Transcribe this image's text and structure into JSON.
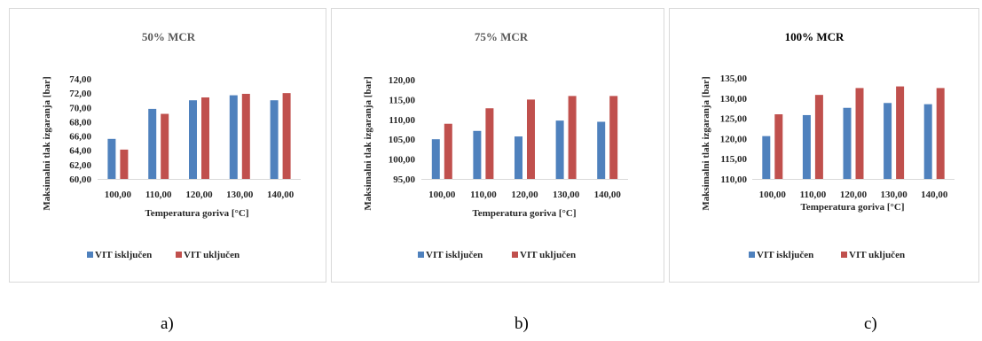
{
  "chart_data": [
    {
      "type": "bar",
      "title": "50% MCR",
      "xlabel": "Temperatura goriva [°C]",
      "ylabel": "Maksimalni tlak izgaranja [bar]",
      "categories": [
        "100,00",
        "110,00",
        "120,00",
        "130,00",
        "140,00"
      ],
      "series": [
        {
          "name": "VIT isključen",
          "values": [
            65.6,
            69.8,
            71.0,
            71.7,
            71.0
          ]
        },
        {
          "name": "VIT uključen",
          "values": [
            64.1,
            69.1,
            71.4,
            71.9,
            72.0
          ]
        }
      ],
      "ylim": [
        60,
        74
      ],
      "yticks": [
        "60,00",
        "62,00",
        "64,00",
        "66,00",
        "68,00",
        "70,00",
        "72,00",
        "74,00"
      ],
      "colors": [
        "#4f81bd",
        "#c0504d"
      ],
      "legend": "bottom",
      "grid": false
    },
    {
      "type": "bar",
      "title": "75% MCR",
      "xlabel": "Temperatura goriva [°C]",
      "ylabel": "Maksimalni tlak izgaranja [bar]",
      "categories": [
        "100,00",
        "110,00",
        "120,00",
        "130,00",
        "140,00"
      ],
      "series": [
        {
          "name": "VIT isključen",
          "values": [
            105.0,
            107.1,
            105.7,
            109.7,
            109.4
          ]
        },
        {
          "name": "VIT uključen",
          "values": [
            108.9,
            112.8,
            115.0,
            115.9,
            115.9
          ]
        }
      ],
      "ylim": [
        95,
        120
      ],
      "yticks": [
        "95,00",
        "100,00",
        "105,00",
        "110,00",
        "115,00",
        "120,00"
      ],
      "colors": [
        "#4f81bd",
        "#c0504d"
      ],
      "legend": "bottom",
      "grid": false
    },
    {
      "type": "bar",
      "title": "100% MCR",
      "xlabel": "Temperatura goriva [°C]",
      "ylabel": "Maksimalni tlak izgaranja [bar]",
      "categories": [
        "100,00",
        "110,00",
        "120,00",
        "130,00",
        "140,00"
      ],
      "series": [
        {
          "name": "VIT isključen",
          "values": [
            120.6,
            125.8,
            127.6,
            128.8,
            128.5
          ]
        },
        {
          "name": "VIT uključen",
          "values": [
            126.0,
            130.8,
            132.5,
            132.9,
            132.5
          ]
        }
      ],
      "ylim": [
        110,
        135
      ],
      "yticks": [
        "110,00",
        "115,00",
        "120,00",
        "125,00",
        "130,00",
        "135,00"
      ],
      "colors": [
        "#4f81bd",
        "#c0504d"
      ],
      "legend": "bottom",
      "grid": false
    }
  ],
  "captions": [
    "a)",
    "b)",
    "c)"
  ]
}
